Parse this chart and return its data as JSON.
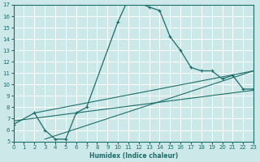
{
  "xlabel": "Humidex (Indice chaleur)",
  "xlim": [
    0,
    23
  ],
  "ylim": [
    5,
    17
  ],
  "yticks": [
    5,
    6,
    7,
    8,
    9,
    10,
    11,
    12,
    13,
    14,
    15,
    16,
    17
  ],
  "xticks": [
    0,
    1,
    2,
    3,
    4,
    5,
    6,
    7,
    8,
    9,
    10,
    11,
    12,
    13,
    14,
    15,
    16,
    17,
    18,
    19,
    20,
    21,
    22,
    23
  ],
  "bg_color": "#cde8e8",
  "line_color": "#1a6e6a",
  "grid_color": "#ffffff",
  "main_x": [
    0,
    2,
    3,
    4,
    5,
    6,
    7,
    10,
    11,
    12,
    13,
    14,
    15,
    16,
    17,
    18,
    19,
    20,
    21,
    22,
    23
  ],
  "main_y": [
    6.5,
    7.5,
    6.0,
    5.2,
    5.2,
    7.5,
    8.0,
    15.5,
    17.5,
    17.2,
    16.8,
    16.5,
    14.2,
    13.0,
    11.5,
    11.2,
    11.2,
    10.5,
    10.8,
    9.6,
    9.6
  ],
  "line2_x": [
    0,
    23
  ],
  "line2_y": [
    6.8,
    9.5
  ],
  "line3_x": [
    2,
    23
  ],
  "line3_y": [
    7.5,
    11.2
  ],
  "line4_x": [
    3,
    23
  ],
  "line4_y": [
    5.2,
    11.2
  ]
}
